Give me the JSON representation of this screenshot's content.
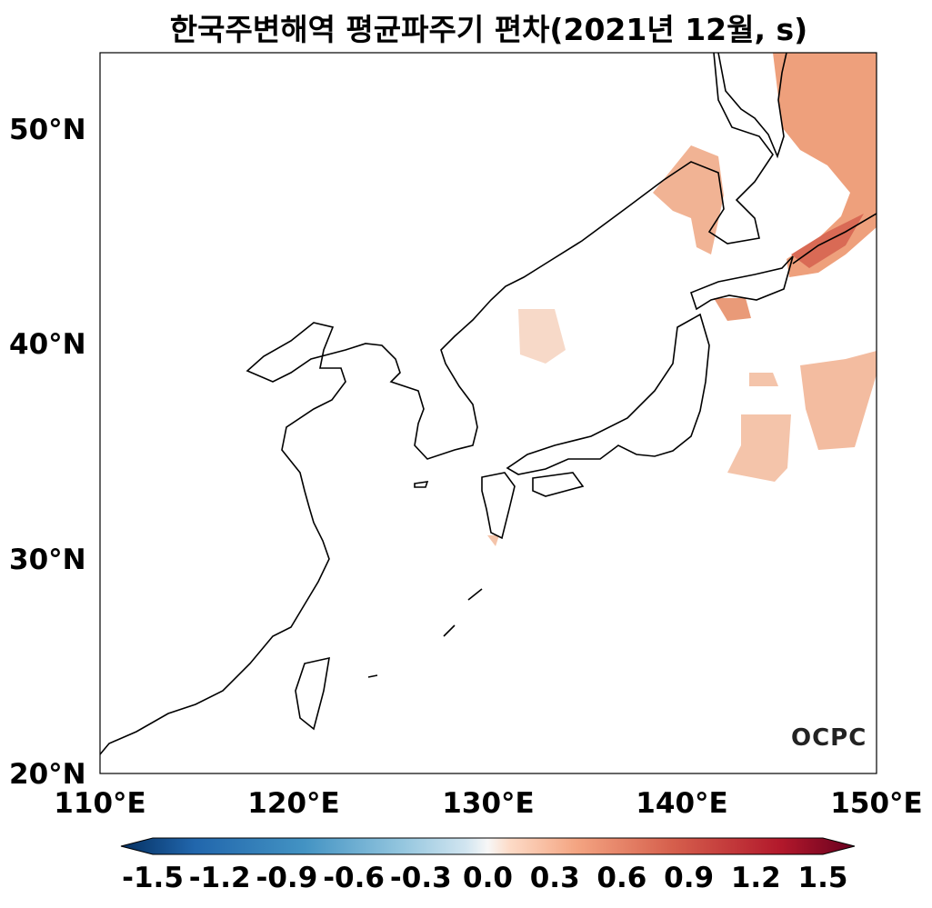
{
  "title": "한국주변해역 평균파주기 편차(2021년 12월, s)",
  "map": {
    "extent": {
      "lon": [
        110,
        150
      ],
      "lat": [
        20,
        53.5
      ]
    },
    "lat_ticks": [
      "20°N",
      "30°N",
      "40°N",
      "50°N"
    ],
    "lon_ticks": [
      "110°E",
      "120°E",
      "130°E",
      "140°E",
      "150°E"
    ],
    "logo": "OCPC",
    "anomaly_color": "#ef9f7d"
  },
  "colorbar": {
    "colormap": "RdBu_r",
    "range": [
      -1.5,
      1.5
    ],
    "extend": "both",
    "ticks": [
      "-1.5",
      "-1.2",
      "-0.9",
      "-0.6",
      "-0.3",
      "0.0",
      "0.3",
      "0.6",
      "0.9",
      "1.2",
      "1.5"
    ]
  }
}
